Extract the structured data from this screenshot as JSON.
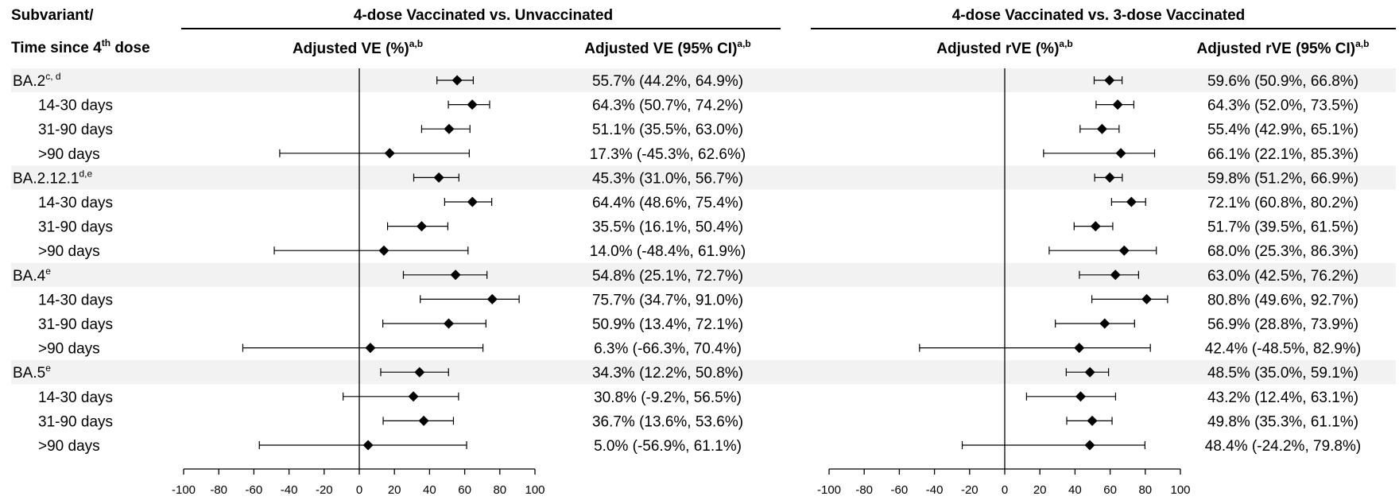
{
  "header": {
    "row_label_line1": "Subvariant/",
    "row_label_line2": "Time since 4",
    "row_label_sup": "th",
    "row_label_line2_end": " dose"
  },
  "colors": {
    "band": "#f2f2f2",
    "ink": "#000000"
  },
  "chart_data": [
    {
      "type": "forest",
      "panel_title": "4-dose Vaccinated vs. Unvaccinated",
      "plot_header": "Adjusted VE (%)",
      "plot_header_sup": "a,b",
      "ci_header": "Adjusted VE (95% CI)",
      "ci_header_sup": "a,b",
      "xlim": [
        -100,
        100
      ],
      "xticks": [
        -100,
        -80,
        -60,
        -40,
        -20,
        0,
        20,
        40,
        60,
        80,
        100
      ],
      "rows": [
        {
          "label": "BA.2",
          "sup": "c, d",
          "group": true,
          "est": 55.7,
          "lo": 44.2,
          "hi": 64.9,
          "text": "55.7% (44.2%, 64.9%)"
        },
        {
          "label": "14-30 days",
          "group": false,
          "est": 64.3,
          "lo": 50.7,
          "hi": 74.2,
          "text": "64.3% (50.7%, 74.2%)"
        },
        {
          "label": "31-90 days",
          "group": false,
          "est": 51.1,
          "lo": 35.5,
          "hi": 63.0,
          "text": "51.1% (35.5%, 63.0%)"
        },
        {
          "label": ">90 days",
          "group": false,
          "est": 17.3,
          "lo": -45.3,
          "hi": 62.6,
          "text": "17.3% (-45.3%, 62.6%)"
        },
        {
          "label": "BA.2.12.1",
          "sup": "d,e",
          "group": true,
          "est": 45.3,
          "lo": 31.0,
          "hi": 56.7,
          "text": "45.3% (31.0%, 56.7%)"
        },
        {
          "label": "14-30 days",
          "group": false,
          "est": 64.4,
          "lo": 48.6,
          "hi": 75.4,
          "text": "64.4% (48.6%, 75.4%)"
        },
        {
          "label": "31-90 days",
          "group": false,
          "est": 35.5,
          "lo": 16.1,
          "hi": 50.4,
          "text": "35.5% (16.1%, 50.4%)"
        },
        {
          "label": ">90 days",
          "group": false,
          "est": 14.0,
          "lo": -48.4,
          "hi": 61.9,
          "text": "14.0% (-48.4%, 61.9%)"
        },
        {
          "label": "BA.4",
          "sup": "e",
          "group": true,
          "est": 54.8,
          "lo": 25.1,
          "hi": 72.7,
          "text": "54.8% (25.1%, 72.7%)"
        },
        {
          "label": "14-30 days",
          "group": false,
          "est": 75.7,
          "lo": 34.7,
          "hi": 91.0,
          "text": "75.7% (34.7%, 91.0%)"
        },
        {
          "label": "31-90 days",
          "group": false,
          "est": 50.9,
          "lo": 13.4,
          "hi": 72.1,
          "text": "50.9% (13.4%, 72.1%)"
        },
        {
          "label": ">90 days",
          "group": false,
          "est": 6.3,
          "lo": -66.3,
          "hi": 70.4,
          "text": "6.3% (-66.3%, 70.4%)"
        },
        {
          "label": "BA.5",
          "sup": "e",
          "group": true,
          "est": 34.3,
          "lo": 12.2,
          "hi": 50.8,
          "text": "34.3% (12.2%, 50.8%)"
        },
        {
          "label": "14-30 days",
          "group": false,
          "est": 30.8,
          "lo": -9.2,
          "hi": 56.5,
          "text": "30.8% (-9.2%, 56.5%)"
        },
        {
          "label": "31-90 days",
          "group": false,
          "est": 36.7,
          "lo": 13.6,
          "hi": 53.6,
          "text": "36.7% (13.6%, 53.6%)"
        },
        {
          "label": ">90 days",
          "group": false,
          "est": 5.0,
          "lo": -56.9,
          "hi": 61.1,
          "text": "5.0% (-56.9%, 61.1%)"
        }
      ]
    },
    {
      "type": "forest",
      "panel_title": "4-dose Vaccinated vs. 3-dose Vaccinated",
      "plot_header": "Adjusted rVE (%)",
      "plot_header_sup": "a,b",
      "ci_header": "Adjusted rVE (95% CI)",
      "ci_header_sup": "a,b",
      "xlim": [
        -100,
        100
      ],
      "xticks": [
        -100,
        -80,
        -60,
        -40,
        -20,
        0,
        20,
        40,
        60,
        80,
        100
      ],
      "rows": [
        {
          "est": 59.6,
          "lo": 50.9,
          "hi": 66.8,
          "text": "59.6% (50.9%, 66.8%)"
        },
        {
          "est": 64.3,
          "lo": 52.0,
          "hi": 73.5,
          "text": "64.3% (52.0%, 73.5%)"
        },
        {
          "est": 55.4,
          "lo": 42.9,
          "hi": 65.1,
          "text": "55.4% (42.9%, 65.1%)"
        },
        {
          "est": 66.1,
          "lo": 22.1,
          "hi": 85.3,
          "text": "66.1% (22.1%, 85.3%)"
        },
        {
          "est": 59.8,
          "lo": 51.2,
          "hi": 66.9,
          "text": "59.8% (51.2%, 66.9%)"
        },
        {
          "est": 72.1,
          "lo": 60.8,
          "hi": 80.2,
          "text": "72.1% (60.8%, 80.2%)"
        },
        {
          "est": 51.7,
          "lo": 39.5,
          "hi": 61.5,
          "text": "51.7% (39.5%, 61.5%)"
        },
        {
          "est": 68.0,
          "lo": 25.3,
          "hi": 86.3,
          "text": "68.0% (25.3%, 86.3%)"
        },
        {
          "est": 63.0,
          "lo": 42.5,
          "hi": 76.2,
          "text": "63.0% (42.5%, 76.2%)"
        },
        {
          "est": 80.8,
          "lo": 49.6,
          "hi": 92.7,
          "text": "80.8% (49.6%, 92.7%)"
        },
        {
          "est": 56.9,
          "lo": 28.8,
          "hi": 73.9,
          "text": "56.9% (28.8%, 73.9%)"
        },
        {
          "est": 42.4,
          "lo": -48.5,
          "hi": 82.9,
          "text": "42.4% (-48.5%, 82.9%)"
        },
        {
          "est": 48.5,
          "lo": 35.0,
          "hi": 59.1,
          "text": "48.5% (35.0%, 59.1%)"
        },
        {
          "est": 43.2,
          "lo": 12.4,
          "hi": 63.1,
          "text": "43.2% (12.4%, 63.1%)"
        },
        {
          "est": 49.8,
          "lo": 35.3,
          "hi": 61.1,
          "text": "49.8% (35.3%, 61.1%)"
        },
        {
          "est": 48.4,
          "lo": -24.2,
          "hi": 79.8,
          "text": "48.4% (-24.2%, 79.8%)"
        }
      ]
    }
  ]
}
